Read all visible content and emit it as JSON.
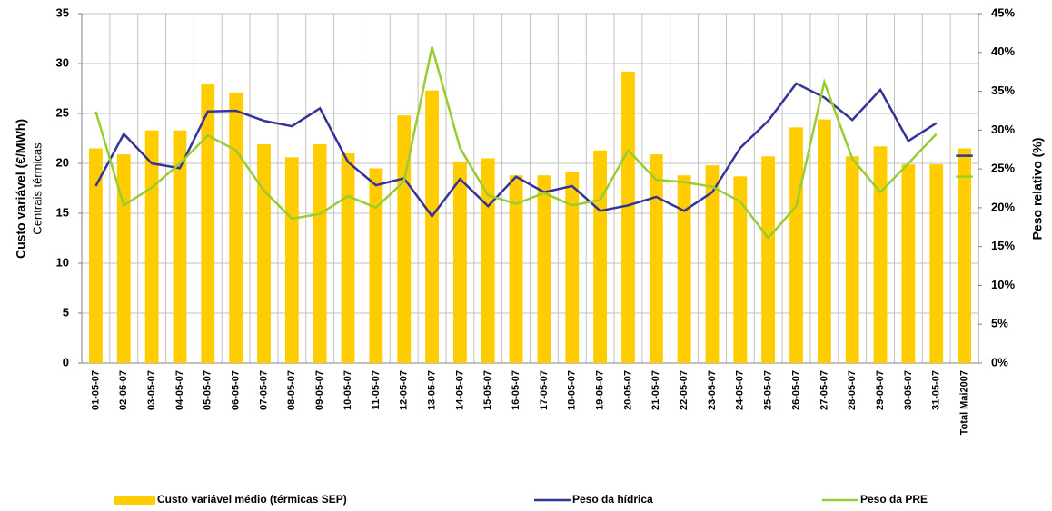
{
  "chart_data": {
    "type": "bar_line",
    "y_label": "Custo variável (€/MWh)",
    "y_sublabel": "Centrais térmicas",
    "y2_label": "Peso relativo (%)",
    "categories": [
      "01-05-07",
      "02-05-07",
      "03-05-07",
      "04-05-07",
      "05-05-07",
      "06-05-07",
      "07-05-07",
      "08-05-07",
      "09-05-07",
      "10-05-07",
      "11-05-07",
      "12-05-07",
      "13-05-07",
      "14-05-07",
      "15-05-07",
      "16-05-07",
      "17-05-07",
      "18-05-07",
      "19-05-07",
      "20-05-07",
      "21-05-07",
      "22-05-07",
      "23-05-07",
      "24-05-07",
      "25-05-07",
      "26-05-07",
      "27-05-07",
      "28-05-07",
      "29-05-07",
      "30-05-07",
      "31-05-07",
      "Total Mai2007"
    ],
    "series": [
      {
        "name": "Custo variável médio (térmicas SEP)",
        "color": "#ffcc00",
        "kind": "bar",
        "values": [
          21.5,
          20.9,
          23.3,
          23.3,
          27.9,
          27.1,
          21.9,
          20.6,
          21.9,
          21.0,
          19.5,
          24.8,
          27.3,
          20.2,
          20.5,
          18.8,
          18.8,
          19.1,
          21.3,
          29.2,
          20.9,
          18.8,
          19.8,
          18.7,
          20.7,
          23.6,
          24.4,
          20.7,
          21.7,
          19.9,
          19.9,
          21.5
        ]
      },
      {
        "name": "Peso da hídrica",
        "color": "#333399",
        "kind": "line",
        "axis": "y2",
        "values": [
          22.8,
          29.5,
          25.7,
          25.1,
          32.4,
          32.5,
          31.2,
          30.5,
          32.8,
          25.9,
          22.9,
          23.8,
          18.9,
          23.7,
          20.2,
          24.0,
          22.0,
          22.8,
          19.6,
          20.3,
          21.4,
          19.6,
          22.0,
          27.7,
          31.2,
          36.0,
          34.2,
          31.3,
          35.2,
          28.6,
          30.9,
          26.7
        ]
      },
      {
        "name": "Peso da PRE",
        "color": "#99cc33",
        "kind": "line",
        "axis": "y2",
        "values": [
          32.4,
          20.3,
          22.6,
          25.7,
          29.3,
          27.4,
          22.2,
          18.6,
          19.2,
          21.5,
          20.0,
          23.4,
          40.7,
          27.7,
          21.6,
          20.5,
          21.9,
          20.3,
          21.0,
          27.4,
          23.6,
          23.3,
          22.7,
          20.8,
          16.1,
          20.2,
          36.2,
          26.3,
          22.0,
          25.7,
          29.5,
          24.0
        ]
      }
    ],
    "ylim": [
      0,
      35
    ],
    "yticks": [
      0,
      5,
      10,
      15,
      20,
      25,
      30,
      35
    ],
    "y2lim": [
      0,
      45
    ],
    "y2ticks": [
      {
        "value": 0,
        "label": "0%"
      },
      {
        "value": 5,
        "label": "5%"
      },
      {
        "value": 10,
        "label": "10%"
      },
      {
        "value": 15,
        "label": "15%"
      },
      {
        "value": 20,
        "label": "20%"
      },
      {
        "value": 25,
        "label": "25%"
      },
      {
        "value": 30,
        "label": "30%"
      },
      {
        "value": 35,
        "label": "35%"
      },
      {
        "value": 40,
        "label": "40%"
      },
      {
        "value": 45,
        "label": "45%"
      }
    ],
    "grid": true,
    "legend": "bottom"
  }
}
